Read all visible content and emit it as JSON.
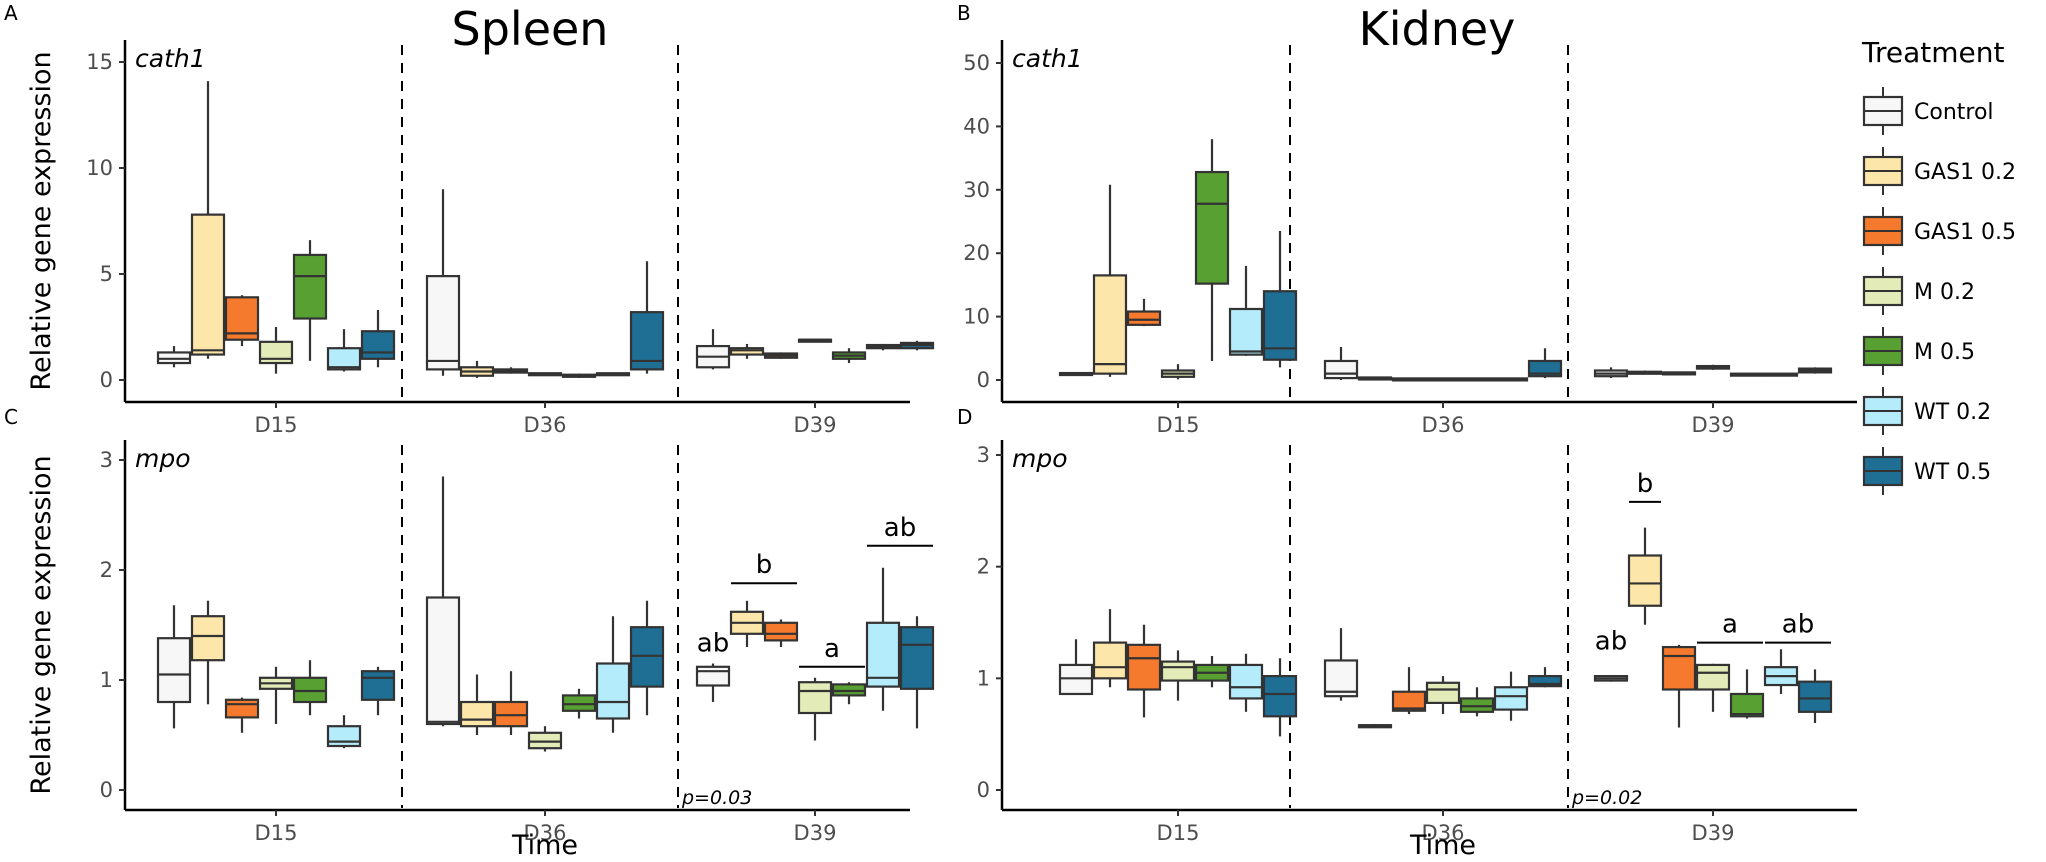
{
  "chart_data": [
    {
      "type": "boxplot",
      "panel": "A",
      "title": "Spleen",
      "gene": "cath1",
      "ylabel": "Relative gene expression",
      "xlabel": "",
      "ylim": [
        0,
        15.5
      ],
      "yticks": [
        0,
        5,
        10,
        15
      ],
      "categories": [
        "D15",
        "D36",
        "D39"
      ],
      "series": [
        {
          "name": "Control",
          "boxes": [
            [
              0.6,
              0.8,
              1.0,
              1.3,
              1.6
            ],
            [
              0.2,
              0.5,
              0.9,
              4.9,
              9.0
            ],
            [
              0.5,
              0.6,
              1.1,
              1.6,
              2.4
            ]
          ]
        },
        {
          "name": "GAS1 0.2",
          "boxes": [
            [
              1.0,
              1.2,
              1.4,
              7.8,
              14.1
            ],
            [
              0.1,
              0.2,
              0.4,
              0.6,
              0.9
            ],
            [
              1.0,
              1.2,
              1.4,
              1.5,
              1.7
            ]
          ]
        },
        {
          "name": "GAS1 0.5",
          "boxes": [
            [
              1.6,
              1.9,
              2.2,
              3.9,
              4.0
            ],
            [
              0.3,
              0.35,
              0.4,
              0.5,
              0.6
            ],
            [
              1.0,
              1.05,
              1.15,
              1.25,
              1.3
            ]
          ]
        },
        {
          "name": "M 0.2",
          "boxes": [
            [
              0.3,
              0.8,
              1.0,
              1.8,
              2.5
            ],
            [
              0.25,
              0.28,
              0.3,
              0.32,
              0.35
            ],
            [
              1.8,
              1.85,
              1.9,
              1.9,
              1.95
            ]
          ]
        },
        {
          "name": "M 0.5",
          "boxes": [
            [
              0.9,
              2.9,
              4.9,
              5.9,
              6.6
            ],
            [
              0.1,
              0.15,
              0.2,
              0.25,
              0.3
            ],
            [
              0.8,
              1.0,
              1.15,
              1.3,
              1.5
            ]
          ]
        },
        {
          "name": "WT 0.2",
          "boxes": [
            [
              0.4,
              0.5,
              0.6,
              1.5,
              2.4
            ],
            [
              0.25,
              0.28,
              0.3,
              0.32,
              0.35
            ],
            [
              1.4,
              1.5,
              1.55,
              1.65,
              1.7
            ]
          ]
        },
        {
          "name": "WT 0.5",
          "boxes": [
            [
              0.6,
              1.0,
              1.3,
              2.3,
              3.3
            ],
            [
              0.3,
              0.5,
              0.9,
              3.2,
              5.6
            ],
            [
              1.4,
              1.5,
              1.65,
              1.75,
              1.85
            ]
          ]
        }
      ]
    },
    {
      "type": "boxplot",
      "panel": "B",
      "title": "Kidney",
      "gene": "cath1",
      "ylabel": "",
      "xlabel": "",
      "ylim": [
        0,
        51
      ],
      "yticks": [
        0,
        10,
        20,
        30,
        40,
        50
      ],
      "categories": [
        "D15",
        "D36",
        "D39"
      ],
      "series": [
        {
          "name": "Control",
          "boxes": [
            [
              0.8,
              0.9,
              1.0,
              1.1,
              1.2
            ],
            [
              0.0,
              0.3,
              1.0,
              3.0,
              5.2
            ],
            [
              0.3,
              0.6,
              1.0,
              1.5,
              2.0
            ]
          ]
        },
        {
          "name": "GAS1 0.2",
          "boxes": [
            [
              0.5,
              1.0,
              2.5,
              16.5,
              30.8
            ],
            [
              0.1,
              0.2,
              0.3,
              0.4,
              0.5
            ],
            [
              1.0,
              1.1,
              1.2,
              1.3,
              1.5
            ]
          ]
        },
        {
          "name": "GAS1 0.5",
          "boxes": [
            [
              8.5,
              8.7,
              9.5,
              10.8,
              12.8
            ],
            [
              0.1,
              0.15,
              0.2,
              0.25,
              0.3
            ],
            [
              1.0,
              1.05,
              1.1,
              1.2,
              1.3
            ]
          ]
        },
        {
          "name": "M 0.2",
          "boxes": [
            [
              0.1,
              0.5,
              1.0,
              1.5,
              2.5
            ],
            [
              0.1,
              0.15,
              0.2,
              0.25,
              0.3
            ],
            [
              1.6,
              1.8,
              2.0,
              2.2,
              2.4
            ]
          ]
        },
        {
          "name": "M 0.5",
          "boxes": [
            [
              3.0,
              15.2,
              27.8,
              32.8,
              38.0
            ],
            [
              0.1,
              0.15,
              0.2,
              0.25,
              0.3
            ],
            [
              0.7,
              0.8,
              0.9,
              1.0,
              1.1
            ]
          ]
        },
        {
          "name": "WT 0.2",
          "boxes": [
            [
              3.8,
              4.0,
              4.5,
              11.2,
              18.0
            ],
            [
              0.1,
              0.15,
              0.2,
              0.25,
              0.3
            ],
            [
              0.7,
              0.8,
              0.9,
              1.0,
              1.1
            ]
          ]
        },
        {
          "name": "WT 0.5",
          "boxes": [
            [
              2.0,
              3.2,
              5.0,
              14.0,
              23.5
            ],
            [
              0.3,
              0.6,
              1.0,
              3.0,
              5.0
            ],
            [
              1.0,
              1.2,
              1.5,
              1.8,
              2.0
            ]
          ]
        }
      ]
    },
    {
      "type": "boxplot",
      "panel": "C",
      "title": "",
      "gene": "mpo",
      "ylabel": "Relative gene expression",
      "xlabel": "Time",
      "ylim": [
        0,
        3.1
      ],
      "yticks": [
        0,
        1,
        2,
        3
      ],
      "categories": [
        "D15",
        "D36",
        "D39"
      ],
      "series": [
        {
          "name": "Control",
          "boxes": [
            [
              0.56,
              0.8,
              1.05,
              1.38,
              1.68
            ],
            [
              0.58,
              0.6,
              0.62,
              1.75,
              2.85
            ],
            [
              0.8,
              0.95,
              1.08,
              1.12,
              1.15
            ]
          ]
        },
        {
          "name": "GAS1 0.2",
          "boxes": [
            [
              0.78,
              1.18,
              1.4,
              1.58,
              1.72
            ],
            [
              0.5,
              0.58,
              0.64,
              0.8,
              1.05
            ],
            [
              1.3,
              1.42,
              1.52,
              1.62,
              1.72
            ]
          ]
        },
        {
          "name": "GAS1 0.5",
          "boxes": [
            [
              0.52,
              0.66,
              0.78,
              0.82,
              0.84
            ],
            [
              0.5,
              0.58,
              0.68,
              0.8,
              1.08
            ],
            [
              1.3,
              1.36,
              1.42,
              1.52,
              1.55
            ]
          ]
        },
        {
          "name": "M 0.2",
          "boxes": [
            [
              0.6,
              0.92,
              0.97,
              1.02,
              1.12
            ],
            [
              0.35,
              0.38,
              0.44,
              0.52,
              0.58
            ],
            [
              0.45,
              0.7,
              0.9,
              0.98,
              1.02
            ]
          ]
        },
        {
          "name": "M 0.5",
          "boxes": [
            [
              0.68,
              0.8,
              0.9,
              1.02,
              1.18
            ],
            [
              0.65,
              0.72,
              0.78,
              0.86,
              0.92
            ],
            [
              0.78,
              0.86,
              0.9,
              0.96,
              0.98
            ]
          ]
        },
        {
          "name": "WT 0.2",
          "boxes": [
            [
              0.38,
              0.4,
              0.44,
              0.58,
              0.68
            ],
            [
              0.52,
              0.65,
              0.8,
              1.15,
              1.58
            ],
            [
              0.72,
              0.94,
              1.02,
              1.52,
              2.02
            ]
          ]
        },
        {
          "name": "WT 0.5",
          "boxes": [
            [
              0.68,
              0.82,
              1.02,
              1.08,
              1.12
            ],
            [
              0.68,
              0.94,
              1.22,
              1.48,
              1.72
            ],
            [
              0.56,
              0.92,
              1.32,
              1.48,
              1.58
            ]
          ]
        }
      ],
      "annotations": [
        {
          "category": "D39",
          "series": "Control",
          "label": "ab",
          "value": 1.17
        },
        {
          "category": "D39",
          "series": [
            "GAS1 0.2",
            "GAS1 0.5"
          ],
          "label": "b",
          "value": 1.88
        },
        {
          "category": "D39",
          "series": [
            "M 0.2",
            "M 0.5"
          ],
          "label": "a",
          "value": 1.12
        },
        {
          "category": "D39",
          "series": [
            "WT 0.2",
            "WT 0.5"
          ],
          "label": "ab",
          "value": 2.22
        }
      ],
      "pvalue": "p=0.03"
    },
    {
      "type": "boxplot",
      "panel": "D",
      "title": "",
      "gene": "mpo",
      "ylabel": "",
      "xlabel": "Time",
      "ylim": [
        0,
        3.1
      ],
      "yticks": [
        0,
        1,
        2,
        3
      ],
      "categories": [
        "D15",
        "D36",
        "D39"
      ],
      "series": [
        {
          "name": "Control",
          "boxes": [
            [
              0.86,
              0.86,
              1.0,
              1.12,
              1.35
            ],
            [
              0.8,
              0.84,
              0.88,
              1.16,
              1.45
            ],
            [
              0.97,
              0.98,
              1.0,
              1.02,
              1.03
            ]
          ]
        },
        {
          "name": "GAS1 0.2",
          "boxes": [
            [
              0.92,
              1.0,
              1.1,
              1.32,
              1.62
            ],
            [
              0.56,
              0.57,
              0.58,
              0.58,
              0.59
            ],
            [
              1.48,
              1.65,
              1.85,
              2.1,
              2.35
            ]
          ]
        },
        {
          "name": "GAS1 0.5",
          "boxes": [
            [
              0.65,
              0.9,
              1.18,
              1.3,
              1.48
            ],
            [
              0.68,
              0.71,
              0.73,
              0.88,
              1.1
            ],
            [
              0.56,
              0.9,
              1.2,
              1.28,
              1.3
            ]
          ]
        },
        {
          "name": "M 0.2",
          "boxes": [
            [
              0.8,
              0.98,
              1.1,
              1.15,
              1.25
            ],
            [
              0.68,
              0.78,
              0.9,
              0.96,
              1.02
            ],
            [
              0.7,
              0.9,
              1.05,
              1.12,
              1.13
            ]
          ]
        },
        {
          "name": "M 0.5",
          "boxes": [
            [
              0.92,
              0.98,
              1.05,
              1.12,
              1.2
            ],
            [
              0.66,
              0.7,
              0.75,
              0.82,
              0.92
            ],
            [
              0.64,
              0.66,
              0.68,
              0.86,
              1.08
            ]
          ]
        },
        {
          "name": "WT 0.2",
          "boxes": [
            [
              0.7,
              0.82,
              0.92,
              1.12,
              1.22
            ],
            [
              0.62,
              0.72,
              0.84,
              0.92,
              1.06
            ],
            [
              0.86,
              0.94,
              1.02,
              1.1,
              1.26
            ]
          ]
        },
        {
          "name": "WT 0.5",
          "boxes": [
            [
              0.48,
              0.66,
              0.86,
              1.02,
              1.18
            ],
            [
              0.92,
              0.93,
              0.95,
              1.02,
              1.1
            ],
            [
              0.6,
              0.7,
              0.82,
              0.97,
              1.08
            ]
          ]
        }
      ],
      "annotations": [
        {
          "category": "D39",
          "series": "Control",
          "label": "ab",
          "value": 1.17
        },
        {
          "category": "D39",
          "series": [
            "GAS1 0.2"
          ],
          "label": "b",
          "value": 2.58
        },
        {
          "category": "D39",
          "series": [
            "M 0.2",
            "M 0.5"
          ],
          "label": "a",
          "value": 1.32
        },
        {
          "category": "D39",
          "series": [
            "WT 0.2",
            "WT 0.5"
          ],
          "label": "ab",
          "value": 1.32
        }
      ],
      "pvalue": "p=0.02"
    }
  ],
  "legend": {
    "title": "Treatment",
    "entries": [
      {
        "label": "Control",
        "color": "#f7f7f7"
      },
      {
        "label": "GAS1 0.2",
        "color": "#fde6a9"
      },
      {
        "label": "GAS1 0.5",
        "color": "#f57a2d"
      },
      {
        "label": "M 0.2",
        "color": "#e3ecb8"
      },
      {
        "label": "M 0.5",
        "color": "#57a031"
      },
      {
        "label": "WT 0.2",
        "color": "#b4ecfb"
      },
      {
        "label": "WT 0.5",
        "color": "#1f6f95"
      }
    ]
  }
}
